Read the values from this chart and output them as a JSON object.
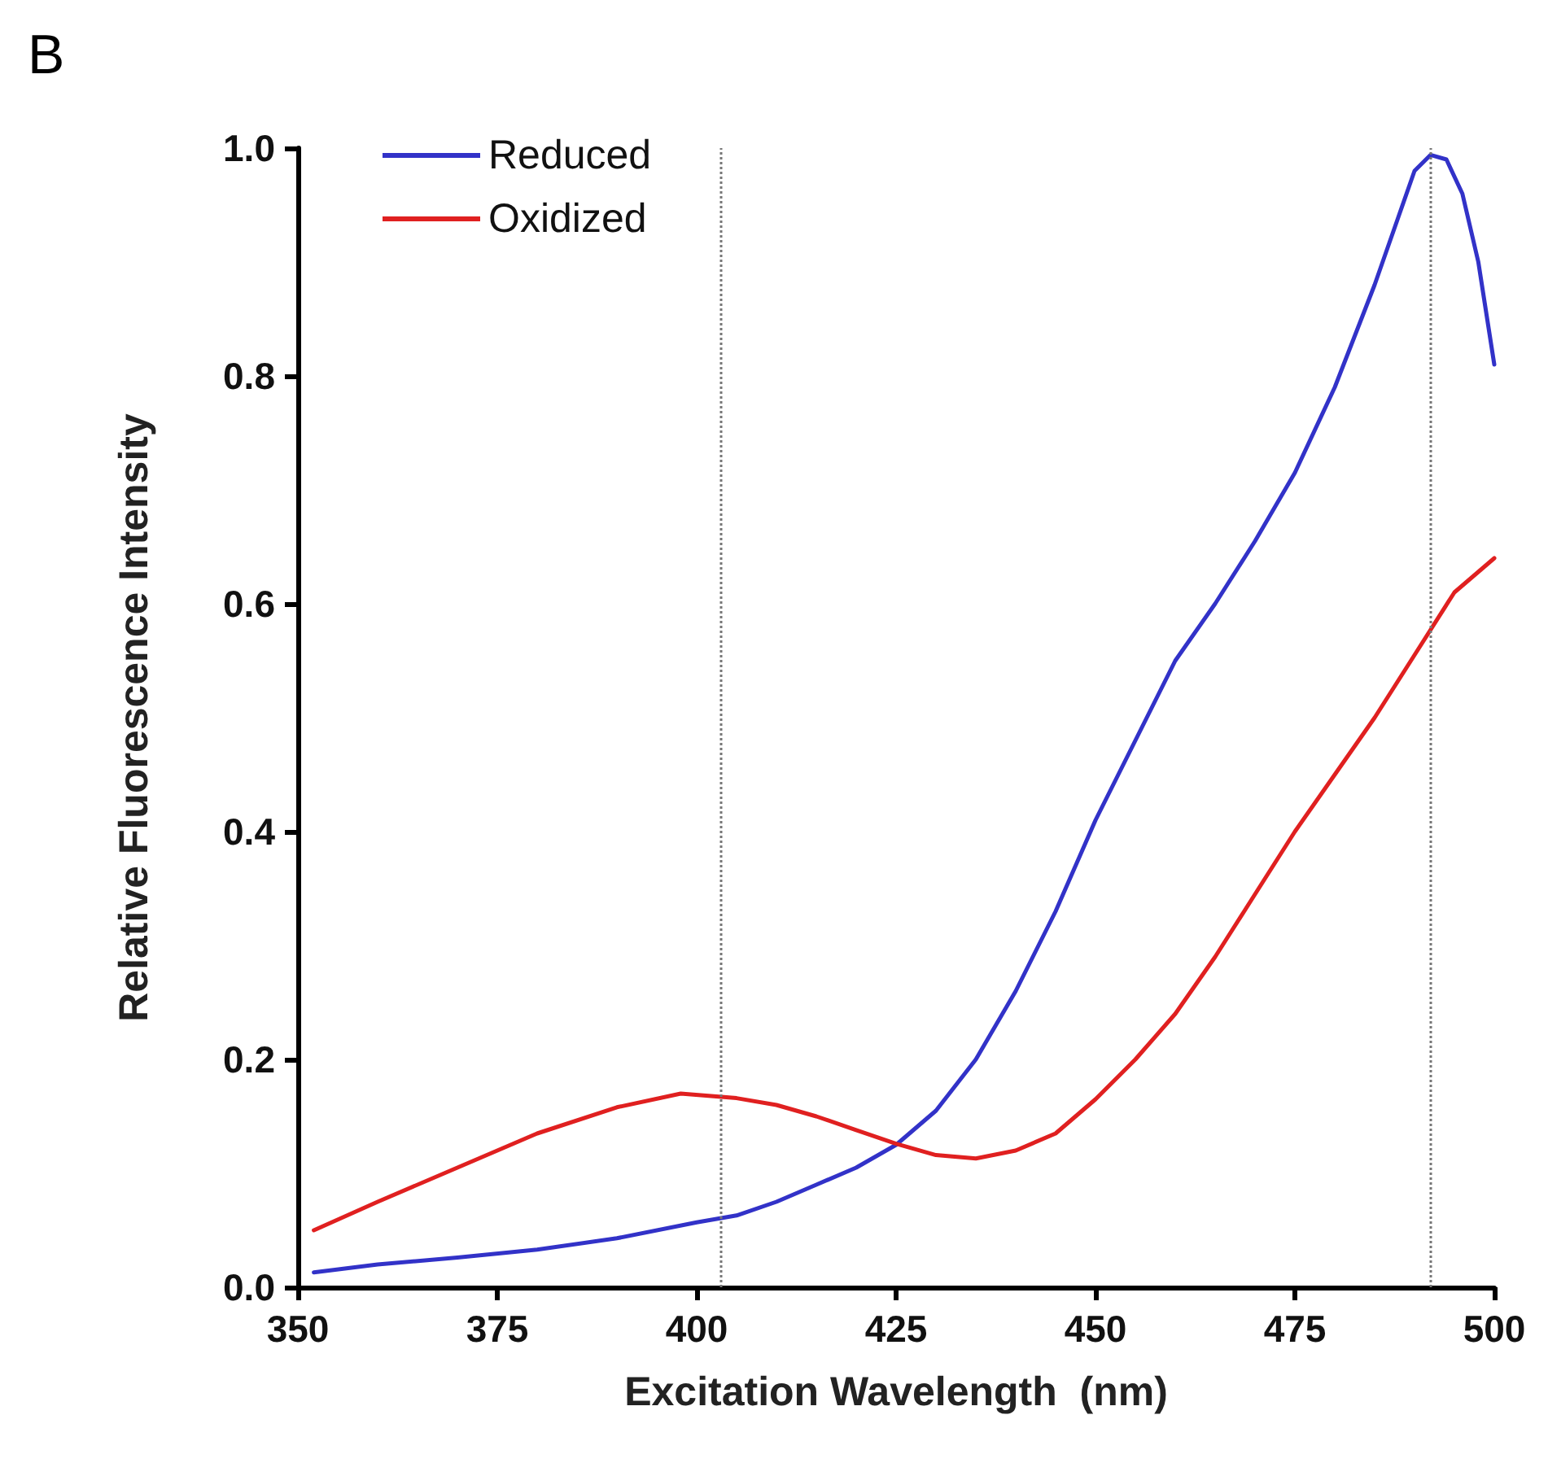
{
  "chart_data": {
    "type": "line",
    "title": "B",
    "xlabel": "Excitation Wavelength  (nm)",
    "ylabel": "Relative Fluorescence Intensity",
    "xlim": [
      350,
      500
    ],
    "xticks": [
      350,
      375,
      400,
      425,
      450,
      475,
      500
    ],
    "ylim": [
      0,
      1.0
    ],
    "yticks": [
      {
        "value": 0,
        "label": "0.0"
      },
      {
        "value": 0.2,
        "label": "0.2"
      },
      {
        "value": 0.4,
        "label": "0.4"
      },
      {
        "value": 0.6,
        "label": "0.6"
      },
      {
        "value": 0.8,
        "label": "0.8"
      },
      {
        "value": 1.0,
        "label": "1.0"
      }
    ],
    "grid": false,
    "legend": "top left",
    "marker": "none",
    "line_style": "solid",
    "series": [
      {
        "name": "Reduced",
        "color": "#3232c8",
        "x": [
          352,
          360,
          370,
          380,
          390,
          400,
          405,
          410,
          415,
          420,
          425,
          430,
          435,
          440,
          445,
          450,
          455,
          460,
          465,
          470,
          475,
          480,
          485,
          488,
          490,
          492,
          494,
          496,
          498,
          500
        ],
        "values": [
          0.013,
          0.02,
          0.026,
          0.033,
          0.043,
          0.057,
          0.063,
          0.075,
          0.09,
          0.105,
          0.125,
          0.155,
          0.2,
          0.26,
          0.33,
          0.41,
          0.48,
          0.55,
          0.6,
          0.655,
          0.715,
          0.79,
          0.88,
          0.94,
          0.98,
          0.994,
          0.99,
          0.96,
          0.9,
          0.81
        ]
      },
      {
        "name": "Oxidized",
        "color": "#e02020",
        "x": [
          352,
          360,
          370,
          380,
          390,
          398,
          405,
          410,
          415,
          420,
          425,
          430,
          435,
          440,
          445,
          450,
          455,
          460,
          465,
          470,
          475,
          480,
          485,
          490,
          495,
          500
        ],
        "values": [
          0.05,
          0.075,
          0.105,
          0.135,
          0.158,
          0.17,
          0.166,
          0.16,
          0.15,
          0.138,
          0.126,
          0.116,
          0.113,
          0.12,
          0.135,
          0.165,
          0.2,
          0.24,
          0.29,
          0.345,
          0.4,
          0.45,
          0.5,
          0.555,
          0.61,
          0.64
        ]
      }
    ],
    "ref_lines": [
      {
        "axis": "x",
        "value": 403,
        "color": "#777777",
        "line_style": "dotted"
      },
      {
        "axis": "x",
        "value": 492,
        "color": "#777777",
        "line_style": "dotted"
      }
    ]
  }
}
